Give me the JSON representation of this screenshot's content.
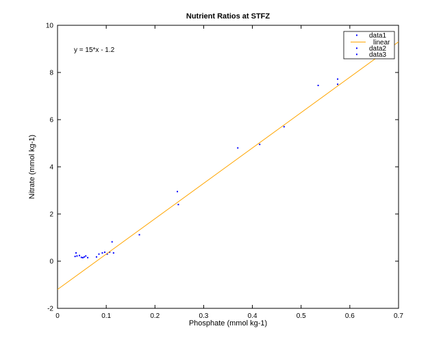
{
  "chart_data": {
    "type": "scatter",
    "title": "Nutrient Ratios at STFZ",
    "xlabel": "Phosphate (mmol kg-1)",
    "ylabel": "Nitrate (mmol kg-1)",
    "xlim": [
      0,
      0.7
    ],
    "ylim": [
      -2,
      10
    ],
    "xticks": [
      "0",
      "0.1",
      "0.2",
      "0.3",
      "0.4",
      "0.5",
      "0.6",
      "0.7"
    ],
    "yticks": [
      "-2",
      "0",
      "2",
      "4",
      "6",
      "8",
      "10"
    ],
    "xtick_values": [
      0,
      0.1,
      0.2,
      0.3,
      0.4,
      0.5,
      0.6,
      0.7
    ],
    "ytick_values": [
      -2,
      0,
      2,
      4,
      6,
      8,
      10
    ],
    "grid": false,
    "annotation": "y = 15*x - 1.2",
    "legend": {
      "location": "top-right",
      "entries": [
        {
          "label": "data1",
          "kind": "marker",
          "color": "#0000ff"
        },
        {
          "label": "linear",
          "kind": "line",
          "color": "#ffa500"
        },
        {
          "label": "data2",
          "kind": "marker",
          "color": "#0000ff"
        },
        {
          "label": "data3",
          "kind": "marker",
          "color": "#0000ff"
        }
      ]
    },
    "series": [
      {
        "name": "data1",
        "color": "#0000ff",
        "x": [
          0.036,
          0.038,
          0.04,
          0.045,
          0.049,
          0.052,
          0.055,
          0.058,
          0.062,
          0.08,
          0.085,
          0.092,
          0.097,
          0.102,
          0.107,
          0.112,
          0.115,
          0.168,
          0.246,
          0.248,
          0.37,
          0.415,
          0.465,
          0.535,
          0.575,
          0.575
        ],
        "y": [
          0.2,
          0.35,
          0.22,
          0.24,
          0.16,
          0.15,
          0.18,
          0.22,
          0.15,
          0.18,
          0.3,
          0.35,
          0.38,
          0.3,
          0.38,
          0.82,
          0.35,
          1.12,
          2.95,
          2.4,
          4.8,
          4.95,
          5.7,
          7.45,
          7.5,
          7.72
        ]
      },
      {
        "name": "linear",
        "color": "#ffa500",
        "fit": {
          "slope": 15,
          "intercept": -1.2
        },
        "x": [
          0,
          0.7
        ],
        "y": [
          -1.2,
          9.3
        ]
      }
    ]
  }
}
